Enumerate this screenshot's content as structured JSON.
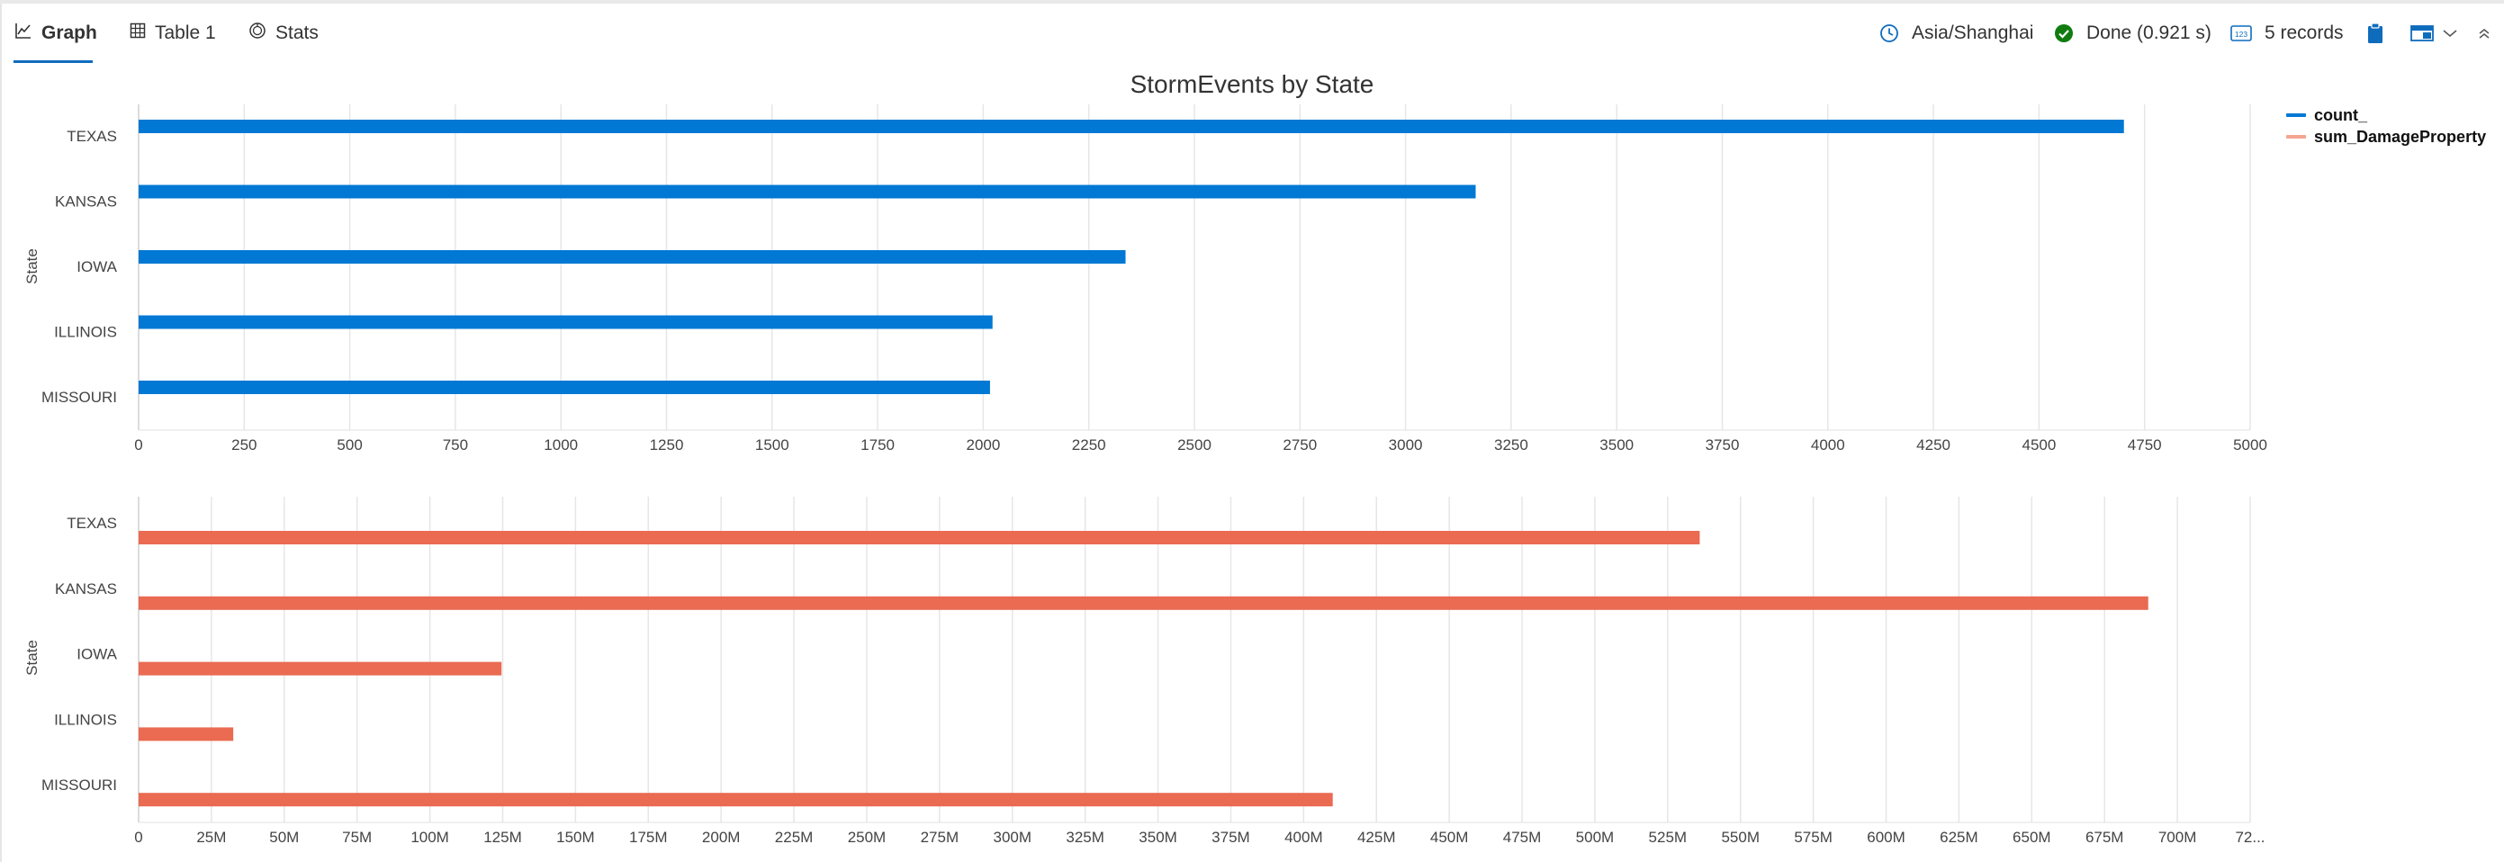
{
  "tabs": [
    {
      "label": "Graph",
      "icon": "line-chart-icon",
      "active": true
    },
    {
      "label": "Table 1",
      "icon": "table-icon",
      "active": false
    },
    {
      "label": "Stats",
      "icon": "stats-icon",
      "active": false
    }
  ],
  "status": {
    "timezone": "Asia/Shanghai",
    "done": "Done (0.921 s)",
    "records": "5 records",
    "records_icon_text": "123"
  },
  "colors": {
    "accent": "#0f6cbd",
    "count": "#0078d4",
    "damage": "#ea6a52",
    "success": "#107c10"
  },
  "chart_data": [
    {
      "type": "bar",
      "orientation": "horizontal",
      "title": "StormEvents by State",
      "ylabel": "State",
      "categories": [
        "TEXAS",
        "KANSAS",
        "IOWA",
        "ILLINOIS",
        "MISSOURI"
      ],
      "series": [
        {
          "name": "count_",
          "values": [
            4701,
            3166,
            2337,
            2022,
            2016
          ]
        }
      ],
      "xlim": [
        0,
        5000
      ],
      "xticks": [
        "0",
        "250",
        "500",
        "750",
        "1000",
        "1250",
        "1500",
        "1750",
        "2000",
        "2250",
        "2500",
        "2750",
        "3000",
        "3250",
        "3500",
        "3750",
        "4000",
        "4250",
        "4500",
        "4750",
        "5000"
      ],
      "grid": true,
      "legend": "top-right"
    },
    {
      "type": "bar",
      "orientation": "horizontal",
      "title": "",
      "ylabel": "State",
      "categories": [
        "TEXAS",
        "KANSAS",
        "IOWA",
        "ILLINOIS",
        "MISSOURI"
      ],
      "series": [
        {
          "name": "sum_DamageProperty",
          "values": [
            536000000,
            690000000,
            124600000,
            32500000,
            410000000
          ]
        }
      ],
      "xlim": [
        0,
        725000000
      ],
      "xticks": [
        "0",
        "25M",
        "50M",
        "75M",
        "100M",
        "125M",
        "150M",
        "175M",
        "200M",
        "225M",
        "250M",
        "275M",
        "300M",
        "325M",
        "350M",
        "375M",
        "400M",
        "425M",
        "450M",
        "475M",
        "500M",
        "525M",
        "550M",
        "575M",
        "600M",
        "625M",
        "650M",
        "675M",
        "700M",
        "72..."
      ],
      "grid": true
    }
  ]
}
